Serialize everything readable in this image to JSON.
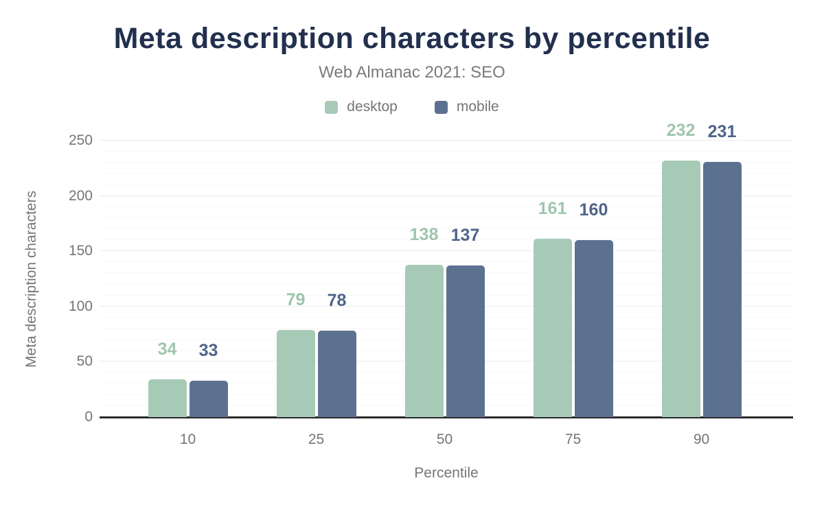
{
  "chart_data": {
    "type": "bar",
    "title": "Meta description characters by percentile",
    "subtitle": "Web Almanac 2021: SEO",
    "xlabel": "Percentile",
    "ylabel": "Meta description characters",
    "categories": [
      "10",
      "25",
      "50",
      "75",
      "90"
    ],
    "series": [
      {
        "name": "desktop",
        "color": "#a7cab6",
        "label_color": "#9ec5ad",
        "values": [
          34,
          79,
          138,
          161,
          232
        ]
      },
      {
        "name": "mobile",
        "color": "#5c7190",
        "label_color": "#4e6488",
        "values": [
          33,
          78,
          137,
          160,
          231
        ]
      }
    ],
    "ylim": [
      0,
      250
    ],
    "yticks": [
      0,
      50,
      100,
      150,
      200,
      250
    ],
    "minor_grid_step": 10,
    "major_grid_step": 50,
    "grid": true,
    "legend_position": "top",
    "colors": {
      "title": "#22304e",
      "subtitle": "#7a7a7a",
      "axis_text": "#757575",
      "axis_line": "#2a2a2a",
      "grid_major": "#ebebeb",
      "grid_minor": "#f7f7f7",
      "background": "#ffffff"
    }
  }
}
